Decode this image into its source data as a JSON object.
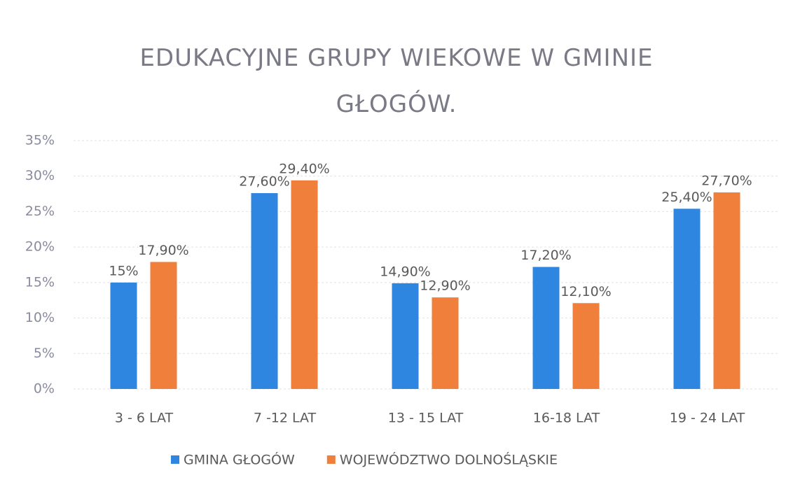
{
  "chart_data": {
    "type": "bar",
    "title": "EDUKACYJNE GRUPY WIEKOWE W GMINIE GŁOGÓW.",
    "categories": [
      "3 - 6 LAT",
      "7 -12 LAT",
      "13 - 15 LAT",
      "16-18 LAT",
      "19 - 24 LAT"
    ],
    "series": [
      {
        "name": "GMINA GŁOGÓW",
        "color": "#2f86e0",
        "values": [
          15,
          27.6,
          14.9,
          17.2,
          25.4
        ],
        "value_labels": [
          "15%",
          "27,60%",
          "14,90%",
          "17,20%",
          "25,40%"
        ]
      },
      {
        "name": "WOJEWÓDZTWO DOLNOŚLĄSKIE",
        "color": "#f07f3c",
        "values": [
          17.9,
          29.4,
          12.9,
          12.1,
          27.7
        ],
        "value_labels": [
          "17,90%",
          "29,40%",
          "12,90%",
          "12,10%",
          "27,70%"
        ]
      }
    ],
    "ylim": [
      0,
      35
    ],
    "yticks": [
      {
        "value": 0,
        "label": "0%"
      },
      {
        "value": 5,
        "label": "5%"
      },
      {
        "value": 10,
        "label": "10%"
      },
      {
        "value": 15,
        "label": "15%"
      },
      {
        "value": 20,
        "label": "20%"
      },
      {
        "value": 25,
        "label": "25%"
      },
      {
        "value": 30,
        "label": "30%"
      },
      {
        "value": 35,
        "label": "35%"
      }
    ],
    "grid": true,
    "legend": "bottom"
  }
}
